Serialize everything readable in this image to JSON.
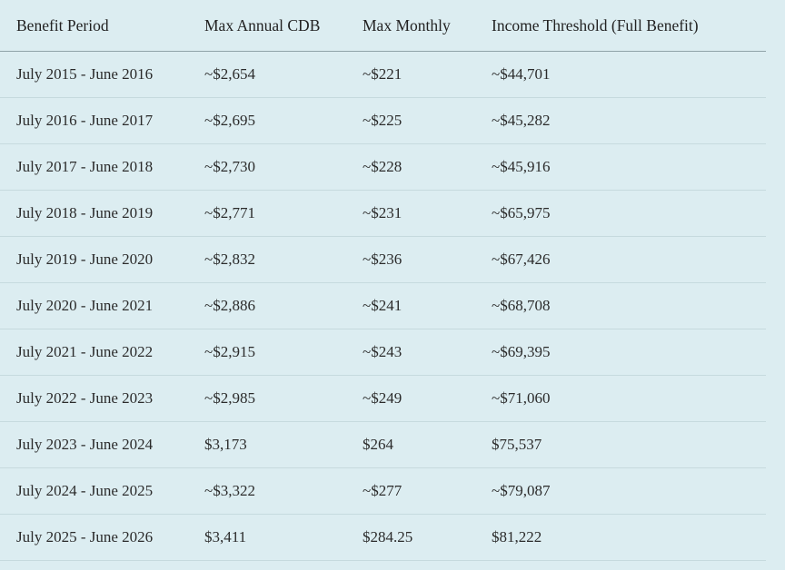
{
  "table": {
    "header": [
      "Benefit Period",
      "Max Annual CDB",
      "Max Monthly",
      "Income Threshold (Full Benefit)"
    ],
    "rows": [
      [
        "July 2015 - June 2016",
        "~$2,654",
        "~$221",
        "~$44,701"
      ],
      [
        "July 2016 - June 2017",
        "~$2,695",
        "~$225",
        "~$45,282"
      ],
      [
        "July 2017 - June 2018",
        "~$2,730",
        "~$228",
        "~$45,916"
      ],
      [
        "July 2018 - June 2019",
        "~$2,771",
        "~$231",
        "~$65,975"
      ],
      [
        "July 2019 - June 2020",
        "~$2,832",
        "~$236",
        "~$67,426"
      ],
      [
        "July 2020 - June 2021",
        "~$2,886",
        "~$241",
        "~$68,708"
      ],
      [
        "July 2021 - June 2022",
        "~$2,915",
        "~$243",
        "~$69,395"
      ],
      [
        "July 2022 - June 2023",
        "~$2,985",
        "~$249",
        "~$71,060"
      ],
      [
        "July 2023 - June 2024",
        "$3,173",
        "$264",
        "$75,537"
      ],
      [
        "July 2024 - June 2025",
        "~$3,322",
        "~$277",
        "~$79,087"
      ],
      [
        "July 2025 - June 2026",
        "$3,411",
        "$284.25",
        "$81,222"
      ]
    ]
  }
}
